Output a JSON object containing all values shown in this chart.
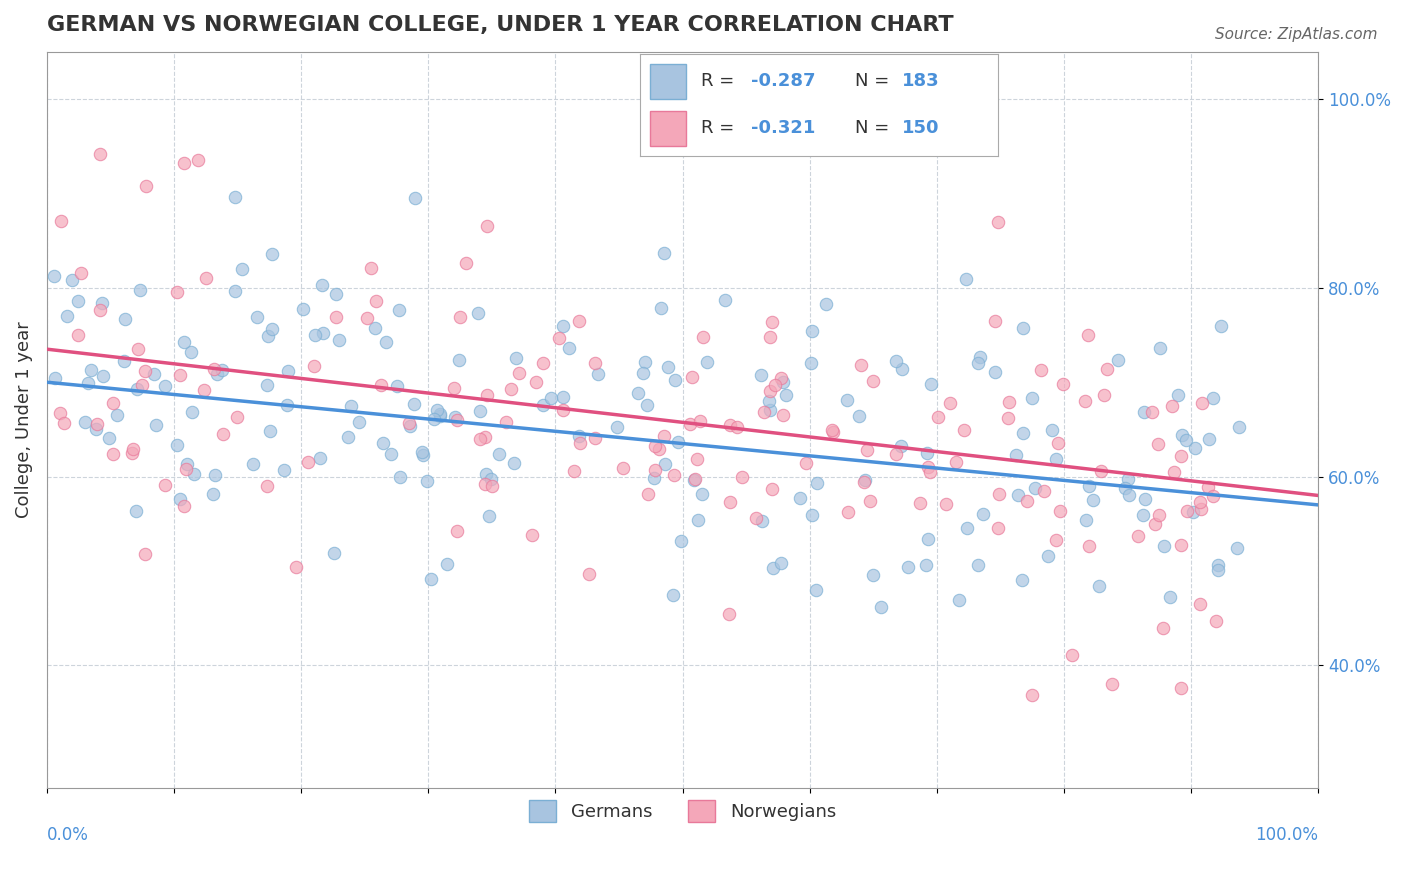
{
  "title": "GERMAN VS NORWEGIAN COLLEGE, UNDER 1 YEAR CORRELATION CHART",
  "source": "Source: ZipAtlas.com",
  "ylabel": "College, Under 1 year",
  "xlim": [
    0.0,
    1.0
  ],
  "ylim": [
    0.27,
    1.05
  ],
  "german_color": "#a8c4e0",
  "german_edge": "#7bafd4",
  "norwegian_color": "#f4a7b9",
  "norwegian_edge": "#e8799a",
  "german_line_color": "#4a90d9",
  "norwegian_line_color": "#e05080",
  "german_slope": -0.13,
  "german_intercept": 0.7,
  "norwegian_slope": -0.155,
  "norwegian_intercept": 0.735,
  "background_color": "#ffffff",
  "grid_color": "#c8d0d8",
  "title_color": "#333333",
  "axis_label_color": "#4a90d9",
  "marker_size": 80,
  "marker_alpha": 0.7,
  "seed": 42,
  "n_german": 183,
  "n_norwegian": 150
}
